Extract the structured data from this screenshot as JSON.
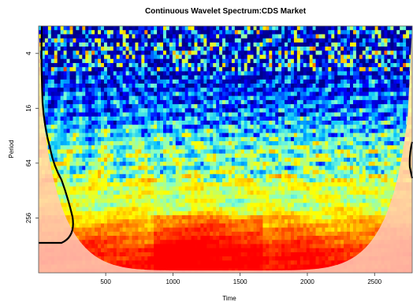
{
  "chart_data": {
    "type": "heatmap",
    "title": "Continuous Wavelet Spectrum:CDS Market",
    "xlabel": "Time",
    "ylabel": "Period",
    "x_ticks": [
      500,
      1000,
      1500,
      2000,
      2500
    ],
    "y_ticks": [
      4,
      16,
      64,
      256
    ],
    "xlim": [
      1,
      2780
    ],
    "ylim": [
      2,
      1024
    ],
    "y_scale": "log2",
    "y_reversed": true,
    "colormap": [
      "#00008b",
      "#0000ff",
      "#00bfff",
      "#7fffd4",
      "#ffff00",
      "#ffa500",
      "#ff4500",
      "#ff0000"
    ],
    "cone_of_influence": "masked outside (faded)",
    "significance_contour_color": "#000000",
    "power_bands": [
      {
        "period": 3,
        "level": 0.05
      },
      {
        "period": 8,
        "level": 0.15
      },
      {
        "period": 20,
        "level": 0.25
      },
      {
        "period": 48,
        "level": 0.45
      },
      {
        "period": 70,
        "level": 0.42
      },
      {
        "period": 110,
        "level": 0.55
      },
      {
        "period": 180,
        "level": 0.5
      },
      {
        "period": 300,
        "level": 0.7
      },
      {
        "period": 420,
        "level": 0.8
      },
      {
        "period": 600,
        "level": 0.95
      }
    ]
  }
}
